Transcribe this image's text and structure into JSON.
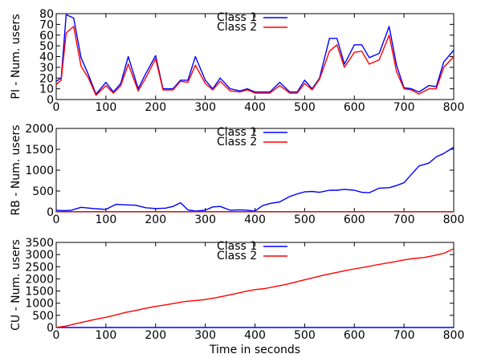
{
  "chart_data": [
    {
      "type": "line",
      "ylabel": "PI - Num. users",
      "xlabel": "",
      "xlim": [
        0,
        800
      ],
      "ylim": [
        0,
        80
      ],
      "xticks": [
        "0",
        "100",
        "200",
        "300",
        "400",
        "500",
        "600",
        "700",
        "800"
      ],
      "yticks": [
        "0",
        "10",
        "20",
        "30",
        "40",
        "50",
        "60",
        "70",
        "80"
      ],
      "grid": false,
      "legend_position": "top-center",
      "x": [
        0,
        10,
        20,
        35,
        50,
        65,
        80,
        100,
        115,
        130,
        145,
        165,
        180,
        200,
        215,
        235,
        250,
        265,
        280,
        300,
        315,
        330,
        350,
        370,
        385,
        400,
        415,
        430,
        450,
        470,
        485,
        500,
        515,
        530,
        550,
        565,
        580,
        600,
        615,
        630,
        650,
        670,
        685,
        700,
        715,
        730,
        750,
        765,
        780,
        800
      ],
      "series": [
        {
          "name": "Class 1",
          "color": "#0000ff",
          "values": [
            17,
            20,
            79,
            76,
            39,
            23,
            5,
            16,
            7,
            15,
            40,
            10,
            24,
            41,
            10,
            10,
            18,
            18,
            40,
            18,
            10,
            20,
            10,
            8,
            10,
            7,
            7,
            7,
            16,
            7,
            7,
            18,
            10,
            20,
            57,
            57,
            33,
            51,
            51,
            39,
            43,
            68,
            32,
            11,
            10,
            7,
            13,
            12,
            35,
            46
          ]
        },
        {
          "name": "Class 2",
          "color": "#ff0000",
          "values": [
            14,
            18,
            62,
            68,
            31,
            20,
            4,
            13,
            6,
            13,
            33,
            8,
            20,
            38,
            9,
            9,
            17,
            16,
            32,
            15,
            9,
            17,
            8,
            7,
            9,
            6,
            6,
            6,
            13,
            6,
            6,
            15,
            9,
            19,
            45,
            51,
            30,
            44,
            45,
            33,
            37,
            60,
            26,
            10,
            9,
            5,
            10,
            10,
            30,
            40
          ]
        }
      ]
    },
    {
      "type": "line",
      "ylabel": "RB - Num. users",
      "xlabel": "",
      "xlim": [
        0,
        800
      ],
      "ylim": [
        0,
        2000
      ],
      "xticks": [
        "0",
        "100",
        "200",
        "300",
        "400",
        "500",
        "600",
        "700",
        "800"
      ],
      "yticks": [
        "0",
        "500",
        "1000",
        "1500",
        "2000"
      ],
      "grid": false,
      "legend_position": "top-center",
      "x": [
        0,
        15,
        30,
        50,
        75,
        100,
        120,
        140,
        160,
        180,
        200,
        220,
        235,
        250,
        265,
        280,
        300,
        315,
        330,
        350,
        370,
        385,
        400,
        415,
        430,
        450,
        470,
        485,
        500,
        515,
        530,
        550,
        565,
        580,
        600,
        615,
        630,
        650,
        670,
        685,
        700,
        715,
        730,
        750,
        765,
        780,
        800
      ],
      "series": [
        {
          "name": "Class 1",
          "color": "#0000ff",
          "values": [
            40,
            30,
            40,
            110,
            80,
            60,
            180,
            170,
            160,
            100,
            80,
            90,
            130,
            220,
            50,
            20,
            40,
            120,
            130,
            40,
            50,
            40,
            20,
            150,
            200,
            240,
            370,
            430,
            480,
            490,
            470,
            520,
            520,
            540,
            520,
            470,
            460,
            570,
            580,
            630,
            700,
            900,
            1100,
            1170,
            1320,
            1400,
            1550
          ]
        },
        {
          "name": "Class 2",
          "color": "#ff0000",
          "values": [
            5,
            5,
            5,
            5,
            5,
            5,
            5,
            5,
            5,
            5,
            5,
            5,
            5,
            5,
            5,
            5,
            5,
            5,
            5,
            5,
            5,
            5,
            5,
            5,
            5,
            5,
            5,
            5,
            5,
            5,
            5,
            5,
            5,
            5,
            5,
            5,
            5,
            5,
            5,
            5,
            5,
            5,
            5,
            5,
            5,
            5,
            5
          ]
        }
      ]
    },
    {
      "type": "line",
      "ylabel": "CU - Num. users",
      "xlabel": "Time in seconds",
      "xlim": [
        0,
        800
      ],
      "ylim": [
        0,
        3500
      ],
      "xticks": [
        "0",
        "100",
        "200",
        "300",
        "400",
        "500",
        "600",
        "700",
        "800"
      ],
      "yticks": [
        "0",
        "500",
        "1000",
        "1500",
        "2000",
        "2500",
        "3000",
        "3500"
      ],
      "grid": false,
      "legend_position": "top-center",
      "x": [
        0,
        20,
        40,
        60,
        80,
        100,
        120,
        140,
        160,
        180,
        200,
        220,
        240,
        260,
        280,
        300,
        320,
        340,
        360,
        380,
        400,
        420,
        440,
        460,
        480,
        500,
        520,
        540,
        560,
        580,
        600,
        620,
        640,
        660,
        680,
        700,
        720,
        740,
        760,
        780,
        800
      ],
      "series": [
        {
          "name": "Class 1",
          "color": "#0000ff",
          "values": [
            0,
            0,
            0,
            0,
            0,
            0,
            0,
            0,
            0,
            0,
            0,
            0,
            0,
            0,
            0,
            0,
            0,
            0,
            0,
            0,
            0,
            0,
            0,
            0,
            0,
            0,
            0,
            0,
            0,
            0,
            0,
            0,
            0,
            0,
            0,
            0,
            0,
            0,
            0,
            0,
            0
          ]
        },
        {
          "name": "Class 2",
          "color": "#ff0000",
          "values": [
            0,
            60,
            160,
            250,
            340,
            420,
            520,
            620,
            700,
            790,
            870,
            930,
            1000,
            1070,
            1110,
            1150,
            1220,
            1300,
            1390,
            1480,
            1560,
            1600,
            1680,
            1760,
            1860,
            1960,
            2060,
            2160,
            2250,
            2330,
            2410,
            2480,
            2560,
            2630,
            2700,
            2780,
            2840,
            2880,
            2960,
            3050,
            3240
          ]
        }
      ]
    }
  ]
}
